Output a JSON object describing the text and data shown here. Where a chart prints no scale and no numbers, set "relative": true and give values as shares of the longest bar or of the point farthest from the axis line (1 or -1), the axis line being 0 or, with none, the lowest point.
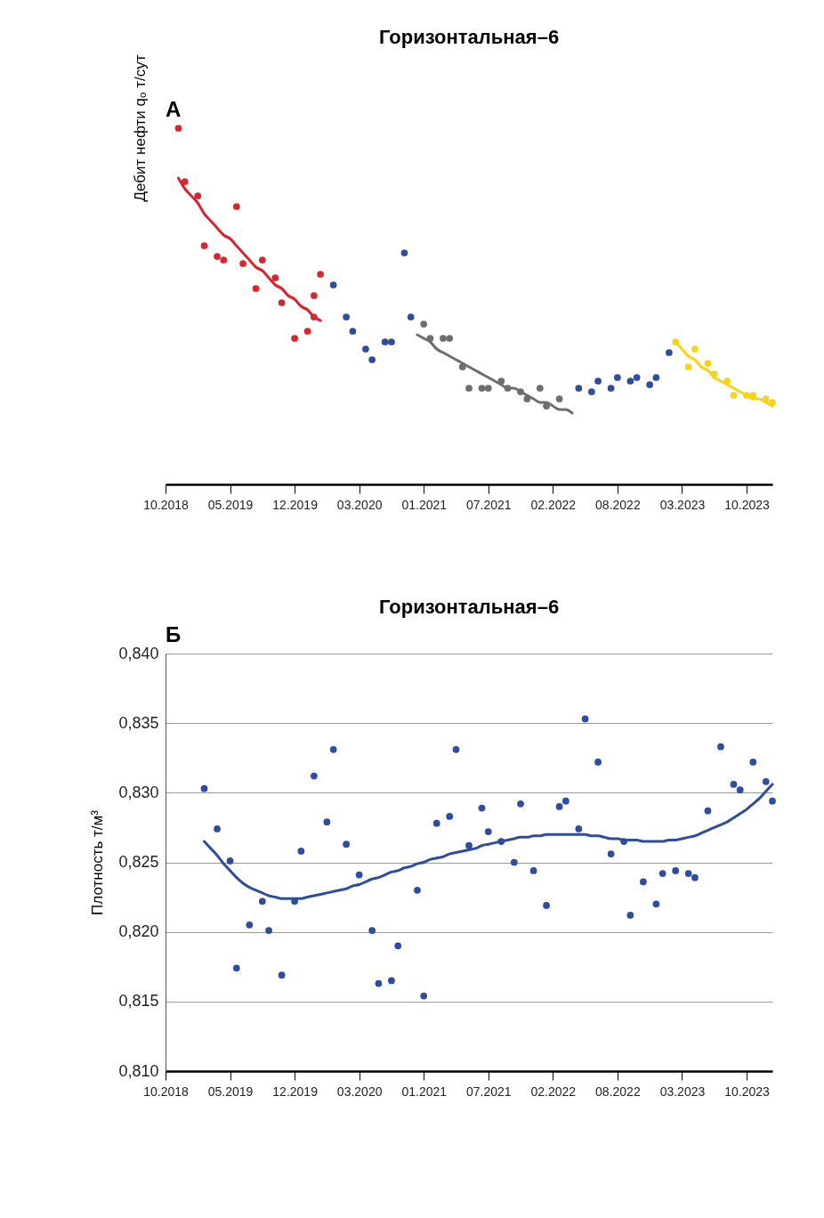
{
  "chart_data": [
    {
      "type": "scatter",
      "title": "Горизонтальная–6",
      "annotations": [
        "А"
      ],
      "ylabel": "Дебит нефти qₒ т/сут",
      "relative": true,
      "marker": "circle",
      "categories": [
        "10.2018",
        null,
        null,
        null,
        null,
        null,
        null,
        null,
        null,
        null,
        "05.2019",
        null,
        null,
        null,
        null,
        null,
        null,
        null,
        null,
        null,
        "12.2019",
        null,
        null,
        null,
        null,
        null,
        null,
        null,
        null,
        null,
        "03.2020",
        null,
        null,
        null,
        null,
        null,
        null,
        null,
        null,
        null,
        "01.2021",
        null,
        null,
        null,
        null,
        null,
        null,
        null,
        null,
        null,
        "07.2021",
        null,
        null,
        null,
        null,
        null,
        null,
        null,
        null,
        null,
        "02.2022",
        null,
        null,
        null,
        null,
        null,
        null,
        null,
        null,
        null,
        "08.2022",
        null,
        null,
        null,
        null,
        null,
        null,
        null,
        null,
        null,
        "03.2023",
        null,
        null,
        null,
        null,
        null,
        null,
        null,
        null,
        null,
        "10.2023",
        null,
        null,
        null,
        null
      ],
      "series": [
        {
          "type": "scatter",
          "color": "#d7262e",
          "values": [
            null,
            null,
            1,
            0.85,
            null,
            0.81,
            0.67,
            null,
            0.64,
            0.63,
            null,
            0.78,
            0.62,
            null,
            0.55,
            0.63,
            null,
            0.58,
            0.51,
            null,
            0.41,
            null,
            0.43,
            0.53,
            0.59,
            null,
            null,
            null,
            null,
            null,
            null,
            null,
            null,
            null,
            null,
            null,
            null,
            null,
            null,
            null,
            null,
            null,
            null,
            null,
            null,
            null,
            null,
            null,
            null,
            null,
            null,
            null,
            null,
            null,
            null,
            null,
            null,
            null,
            null,
            null,
            null,
            null,
            null,
            null,
            null,
            null,
            null,
            null,
            null,
            null,
            null,
            null,
            null,
            null,
            null,
            null,
            null,
            null,
            null,
            null,
            null,
            null,
            null,
            null,
            null,
            null,
            null,
            null,
            null,
            null,
            null,
            null,
            null,
            null,
            null
          ]
        },
        {
          "type": "scatter",
          "color": "#d7262e",
          "values": [
            null,
            null,
            null,
            null,
            null,
            null,
            null,
            null,
            null,
            null,
            null,
            null,
            null,
            null,
            null,
            null,
            null,
            null,
            null,
            null,
            null,
            null,
            null,
            0.47,
            null,
            null,
            null,
            null,
            null,
            null,
            null,
            null,
            null,
            null,
            null,
            null,
            null,
            null,
            null,
            null,
            null,
            null,
            null,
            null,
            null,
            null,
            null,
            null,
            null,
            null,
            null,
            null,
            null,
            null,
            null,
            null,
            null,
            null,
            null,
            null,
            null,
            null,
            null,
            null,
            null,
            null,
            null,
            null,
            null,
            null,
            null,
            null,
            null,
            null,
            null,
            null,
            null,
            null,
            null,
            null,
            null,
            null,
            null,
            null,
            null,
            null,
            null,
            null,
            null,
            null,
            null,
            null,
            null,
            null,
            null
          ]
        },
        {
          "type": "scatter",
          "color": "#2e4d9f",
          "values": [
            null,
            null,
            null,
            null,
            null,
            null,
            null,
            null,
            null,
            null,
            null,
            null,
            null,
            null,
            null,
            null,
            null,
            null,
            null,
            null,
            null,
            null,
            null,
            null,
            null,
            null,
            0.56,
            null,
            0.47,
            0.43,
            null,
            0.38,
            0.35,
            null,
            0.4,
            0.4,
            null,
            0.65,
            0.47,
            null,
            null,
            null,
            null,
            null,
            null,
            null,
            null,
            null,
            null,
            null,
            null,
            null,
            null,
            null,
            null,
            null,
            null,
            null,
            null,
            null,
            null,
            null,
            null,
            null,
            0.27,
            null,
            0.26,
            0.29,
            null,
            0.27,
            0.3,
            null,
            0.29,
            0.3,
            null,
            0.28,
            0.3,
            null,
            0.37,
            null,
            null,
            null,
            null,
            null,
            null,
            null,
            null,
            null,
            null,
            null,
            null,
            null,
            null,
            null,
            null
          ]
        },
        {
          "type": "scatter",
          "color": "#6d6d6d",
          "values": [
            null,
            null,
            null,
            null,
            null,
            null,
            null,
            null,
            null,
            null,
            null,
            null,
            null,
            null,
            null,
            null,
            null,
            null,
            null,
            null,
            null,
            null,
            null,
            null,
            null,
            null,
            null,
            null,
            null,
            null,
            null,
            null,
            null,
            null,
            null,
            null,
            null,
            null,
            null,
            null,
            0.45,
            0.41,
            null,
            0.41,
            0.41,
            null,
            0.33,
            0.27,
            null,
            0.27,
            0.27,
            null,
            0.29,
            0.27,
            null,
            0.26,
            0.24,
            null,
            0.27,
            0.22,
            null,
            0.24,
            null,
            null,
            null,
            null,
            null,
            null,
            null,
            null,
            null,
            null,
            null,
            null,
            null,
            null,
            null,
            null,
            null,
            null,
            null,
            null,
            null,
            null,
            null,
            null,
            null,
            null,
            null,
            null,
            null,
            null,
            null,
            null,
            null
          ]
        },
        {
          "type": "scatter",
          "color": "#f7d417",
          "values": [
            null,
            null,
            null,
            null,
            null,
            null,
            null,
            null,
            null,
            null,
            null,
            null,
            null,
            null,
            null,
            null,
            null,
            null,
            null,
            null,
            null,
            null,
            null,
            null,
            null,
            null,
            null,
            null,
            null,
            null,
            null,
            null,
            null,
            null,
            null,
            null,
            null,
            null,
            null,
            null,
            null,
            null,
            null,
            null,
            null,
            null,
            null,
            null,
            null,
            null,
            null,
            null,
            null,
            null,
            null,
            null,
            null,
            null,
            null,
            null,
            null,
            null,
            null,
            null,
            null,
            null,
            null,
            null,
            null,
            null,
            null,
            null,
            null,
            null,
            null,
            null,
            null,
            null,
            null,
            0.4,
            null,
            0.33,
            0.38,
            null,
            0.34,
            0.31,
            null,
            0.29,
            0.25,
            null,
            0.25,
            0.25,
            null,
            0.24,
            0.23
          ]
        },
        {
          "type": "line",
          "marker": "none",
          "color": "#d7262e",
          "values": [
            null,
            null,
            0.86,
            0.83,
            0.81,
            0.79,
            0.76,
            0.74,
            0.72,
            0.7,
            0.69,
            0.67,
            0.65,
            0.63,
            0.61,
            0.6,
            0.58,
            0.56,
            0.55,
            0.53,
            0.52,
            0.5,
            0.49,
            0.47,
            0.46,
            null,
            null,
            null,
            null,
            null,
            null,
            null,
            null,
            null,
            null,
            null,
            null,
            null,
            null,
            null,
            null,
            null,
            null,
            null,
            null,
            null,
            null,
            null,
            null,
            null,
            null,
            null,
            null,
            null,
            null,
            null,
            null,
            null,
            null,
            null,
            null,
            null,
            null,
            null,
            null,
            null,
            null,
            null,
            null,
            null,
            null,
            null,
            null,
            null,
            null,
            null,
            null,
            null,
            null,
            null,
            null,
            null,
            null,
            null,
            null,
            null,
            null,
            null,
            null,
            null,
            null,
            null,
            null,
            null,
            null
          ]
        },
        {
          "type": "line",
          "marker": "none",
          "color": "#6d6d6d",
          "values": [
            null,
            null,
            null,
            null,
            null,
            null,
            null,
            null,
            null,
            null,
            null,
            null,
            null,
            null,
            null,
            null,
            null,
            null,
            null,
            null,
            null,
            null,
            null,
            null,
            null,
            null,
            null,
            null,
            null,
            null,
            null,
            null,
            null,
            null,
            null,
            null,
            null,
            null,
            null,
            0.42,
            0.41,
            0.4,
            0.38,
            0.37,
            0.36,
            0.35,
            0.34,
            0.33,
            0.32,
            0.31,
            0.3,
            0.29,
            0.28,
            0.27,
            0.27,
            0.26,
            0.25,
            0.24,
            0.23,
            0.23,
            0.22,
            0.21,
            0.21,
            0.2,
            null,
            null,
            null,
            null,
            null,
            null,
            null,
            null,
            null,
            null,
            null,
            null,
            null,
            null,
            null,
            null,
            null,
            null,
            null,
            null,
            null,
            null,
            null,
            null,
            null,
            null,
            null,
            null,
            null,
            null,
            null
          ]
        },
        {
          "type": "line",
          "marker": "none",
          "color": "#f7d417",
          "values": [
            null,
            null,
            null,
            null,
            null,
            null,
            null,
            null,
            null,
            null,
            null,
            null,
            null,
            null,
            null,
            null,
            null,
            null,
            null,
            null,
            null,
            null,
            null,
            null,
            null,
            null,
            null,
            null,
            null,
            null,
            null,
            null,
            null,
            null,
            null,
            null,
            null,
            null,
            null,
            null,
            null,
            null,
            null,
            null,
            null,
            null,
            null,
            null,
            null,
            null,
            null,
            null,
            null,
            null,
            null,
            null,
            null,
            null,
            null,
            null,
            null,
            null,
            null,
            null,
            null,
            null,
            null,
            null,
            null,
            null,
            null,
            null,
            null,
            null,
            null,
            null,
            null,
            null,
            null,
            0.4,
            0.38,
            0.36,
            0.35,
            0.33,
            0.32,
            0.3,
            0.29,
            0.28,
            0.27,
            0.26,
            0.25,
            0.24,
            0.24,
            0.23,
            0.22
          ]
        }
      ]
    },
    {
      "type": "scatter",
      "title": "Горизонтальная–6",
      "annotations": [
        "Б"
      ],
      "ylabel": "Плотность т/м³",
      "marker": "circle",
      "grid": "y",
      "categories": [
        "10.2018",
        null,
        null,
        null,
        null,
        null,
        null,
        null,
        null,
        null,
        "05.2019",
        null,
        null,
        null,
        null,
        null,
        null,
        null,
        null,
        null,
        "12.2019",
        null,
        null,
        null,
        null,
        null,
        null,
        null,
        null,
        null,
        "03.2020",
        null,
        null,
        null,
        null,
        null,
        null,
        null,
        null,
        null,
        "01.2021",
        null,
        null,
        null,
        null,
        null,
        null,
        null,
        null,
        null,
        "07.2021",
        null,
        null,
        null,
        null,
        null,
        null,
        null,
        null,
        null,
        "02.2022",
        null,
        null,
        null,
        null,
        null,
        null,
        null,
        null,
        null,
        "08.2022",
        null,
        null,
        null,
        null,
        null,
        null,
        null,
        null,
        null,
        "03.2023",
        null,
        null,
        null,
        null,
        null,
        null,
        null,
        null,
        null,
        "10.2023",
        null,
        null,
        null,
        null
      ],
      "ylim": [
        0.81,
        0.84
      ],
      "yticks": [
        {
          "value": 0.81,
          "label": "0,810"
        },
        {
          "value": 0.815,
          "label": "0,815"
        },
        {
          "value": 0.82,
          "label": "0,820"
        },
        {
          "value": 0.825,
          "label": "0,825"
        },
        {
          "value": 0.83,
          "label": "0,830"
        },
        {
          "value": 0.835,
          "label": "0,835"
        },
        {
          "value": 0.84,
          "label": "0,840"
        }
      ],
      "series": [
        {
          "type": "scatter",
          "color": "#2e4d9f",
          "values": [
            null,
            null,
            null,
            null,
            null,
            null,
            0.8303,
            null,
            0.8274,
            null,
            0.8251,
            0.8174,
            null,
            0.8205,
            null,
            0.8222,
            0.8201,
            null,
            0.8169,
            null,
            0.8222,
            0.8258,
            null,
            0.8312,
            null,
            0.8279,
            0.8331,
            null,
            0.8263,
            null,
            0.8241,
            null,
            0.8201,
            0.8163,
            null,
            0.8165,
            0.819,
            null,
            null,
            0.823,
            0.8154,
            null,
            0.8278,
            null,
            0.8283,
            0.8331,
            null,
            0.8262,
            null,
            0.8289,
            0.8272,
            null,
            0.8265,
            null,
            0.825,
            0.8292,
            null,
            0.8244,
            null,
            0.8219,
            null,
            0.829,
            0.8294,
            null,
            0.8274,
            0.8353,
            null,
            0.8322,
            null,
            0.8256,
            null,
            0.8265,
            0.8212,
            null,
            0.8236,
            null,
            0.822,
            0.8242,
            null,
            0.8244,
            null,
            0.8242,
            0.8239,
            null,
            0.8287,
            null,
            0.8333,
            null,
            0.8306,
            0.8302,
            null,
            0.8322,
            null,
            0.8308,
            0.8294
          ]
        },
        {
          "type": "line",
          "marker": "none",
          "color": "#2e4d9f",
          "values": [
            null,
            null,
            null,
            null,
            null,
            null,
            0.8265,
            0.826,
            0.8255,
            0.8249,
            0.8244,
            0.8239,
            0.8235,
            0.8232,
            0.823,
            0.8228,
            0.8226,
            0.8225,
            0.8224,
            0.8224,
            0.8224,
            0.8224,
            0.8225,
            0.8226,
            0.8227,
            0.8228,
            0.8229,
            0.823,
            0.8231,
            0.8233,
            0.8234,
            0.8236,
            0.8238,
            0.8239,
            0.8241,
            0.8243,
            0.8244,
            0.8246,
            0.8247,
            0.8249,
            0.825,
            0.8252,
            0.8253,
            0.8254,
            0.8256,
            0.8257,
            0.8258,
            0.8259,
            0.826,
            0.8262,
            0.8263,
            0.8264,
            0.8265,
            0.8266,
            0.8267,
            0.8268,
            0.8268,
            0.8269,
            0.8269,
            0.827,
            0.827,
            0.827,
            0.827,
            0.827,
            0.827,
            0.827,
            0.8269,
            0.8269,
            0.8268,
            0.8267,
            0.8267,
            0.8266,
            0.8266,
            0.8266,
            0.8265,
            0.8265,
            0.8265,
            0.8265,
            0.8266,
            0.8266,
            0.8267,
            0.8268,
            0.8269,
            0.8271,
            0.8273,
            0.8275,
            0.8277,
            0.8279,
            0.8282,
            0.8285,
            0.8288,
            0.8292,
            0.8296,
            0.8301,
            0.8306
          ]
        }
      ]
    }
  ]
}
